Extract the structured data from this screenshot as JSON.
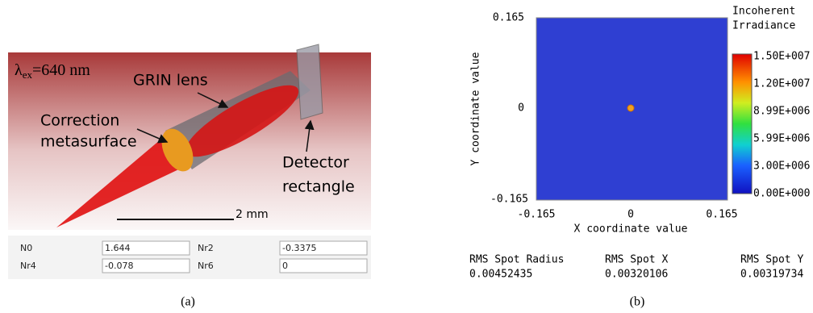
{
  "panel_a": {
    "caption": "(a)",
    "wavelength": {
      "symbol": "λ",
      "subscript": "ex",
      "value": "=640 nm"
    },
    "labels": {
      "grin_lens": "GRIN lens",
      "correction": [
        "Correction",
        "metasurface"
      ],
      "detector": [
        "Detector",
        "rectangle"
      ],
      "scale_bar": "2 mm"
    },
    "table": {
      "rows": [
        [
          "N0",
          "1.644",
          "Nr2",
          "-0.3375"
        ],
        [
          "Nr4",
          "-0.078",
          "Nr6",
          "0"
        ]
      ]
    }
  },
  "panel_b": {
    "caption": "(b)",
    "y_axis_label": "Y coordinate value",
    "x_axis_label": "X coordinate value",
    "y_ticks": [
      "0.165",
      "0",
      "-0.165"
    ],
    "x_ticks": [
      "-0.165",
      "0",
      "0.165"
    ],
    "colorbar": {
      "title": [
        "Incoherent",
        "Irradiance"
      ],
      "labels": [
        "1.50E+007",
        "1.20E+007",
        "8.99E+006",
        "5.99E+006",
        "3.00E+006",
        "0.00E+000"
      ]
    },
    "stats": [
      {
        "name": "RMS Spot Radius",
        "value": "0.00452435"
      },
      {
        "name": "RMS Spot X",
        "value": "0.00320106"
      },
      {
        "name": "RMS Spot Y",
        "value": "0.00319734"
      }
    ]
  }
}
